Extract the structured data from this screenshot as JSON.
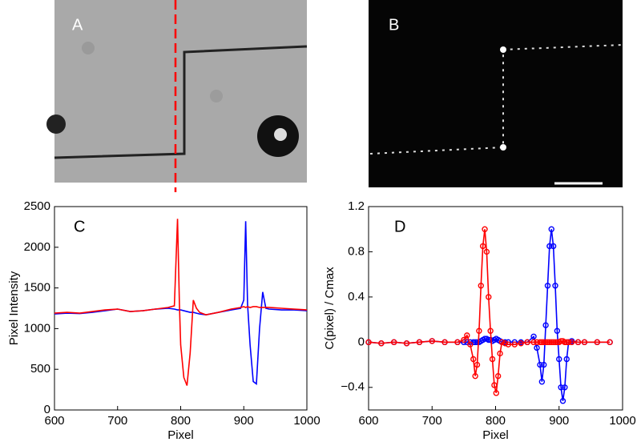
{
  "panels": [
    {
      "label": "A"
    },
    {
      "label": "B"
    }
  ],
  "chart_data": [
    {
      "type": "line",
      "annotation": "C",
      "xlabel": "Pixel",
      "ylabel": "Pixel Intensity",
      "xlim": [
        600,
        1000
      ],
      "xticks": [
        600,
        700,
        800,
        900,
        1000
      ],
      "ylim": [
        0,
        2500
      ],
      "yticks": [
        0,
        500,
        1000,
        1500,
        2000,
        2500
      ],
      "markers": false,
      "x": [
        600,
        620,
        640,
        660,
        680,
        700,
        720,
        740,
        760,
        780,
        790,
        795,
        798,
        800,
        805,
        810,
        815,
        820,
        825,
        830,
        840,
        860,
        880,
        895,
        900,
        903,
        906,
        910,
        915,
        920,
        925,
        930,
        935,
        940,
        960,
        980,
        1000
      ],
      "series": [
        {
          "color": "#0000ff",
          "values": [
            1180,
            1190,
            1185,
            1200,
            1220,
            1240,
            1210,
            1220,
            1240,
            1250,
            1240,
            1230,
            1230,
            1230,
            1220,
            1210,
            1200,
            1200,
            1190,
            1180,
            1170,
            1200,
            1230,
            1250,
            1350,
            2320,
            1300,
            800,
            350,
            320,
            1000,
            1450,
            1250,
            1240,
            1230,
            1230,
            1220
          ]
        },
        {
          "color": "#ff0000",
          "values": [
            1190,
            1200,
            1190,
            1210,
            1230,
            1240,
            1210,
            1220,
            1240,
            1260,
            1280,
            2350,
            1300,
            800,
            400,
            300,
            700,
            1350,
            1250,
            1200,
            1170,
            1200,
            1240,
            1260,
            1270,
            1260,
            1270,
            1260,
            1270,
            1270,
            1260,
            1260,
            1260,
            1260,
            1250,
            1240,
            1230
          ]
        }
      ]
    },
    {
      "type": "line",
      "annotation": "D",
      "xlabel": "Pixel",
      "ylabel": "C(pixel) / Cmax",
      "xlim": [
        600,
        1000
      ],
      "xticks": [
        600,
        700,
        800,
        900,
        1000
      ],
      "ylim": [
        -0.6,
        1.2
      ],
      "yticks": [
        {
          "value": -0.4,
          "label": "−0.4"
        },
        0,
        0.4,
        0.8,
        1.2
      ],
      "markers": true,
      "x": [
        600,
        620,
        640,
        660,
        680,
        700,
        720,
        740,
        750,
        755,
        760,
        765,
        768,
        771,
        774,
        777,
        780,
        783,
        786,
        789,
        792,
        795,
        798,
        801,
        804,
        807,
        810,
        815,
        820,
        830,
        840,
        850,
        860,
        865,
        870,
        873,
        876,
        879,
        882,
        885,
        888,
        891,
        894,
        897,
        900,
        903,
        906,
        909,
        912,
        915,
        920,
        930,
        940,
        960,
        980
      ],
      "series": [
        {
          "color": "#0000ff",
          "values": [
            0,
            -0.01,
            0,
            -0.01,
            0,
            0.01,
            0,
            0,
            0,
            0,
            0,
            0,
            0,
            0,
            0,
            0.01,
            0.02,
            0.03,
            0.03,
            0.02,
            0.02,
            0.01,
            0.02,
            0.03,
            0.02,
            0.01,
            0,
            0,
            0,
            0,
            0,
            0,
            0.05,
            -0.05,
            -0.2,
            -0.35,
            -0.2,
            0.15,
            0.5,
            0.85,
            1.0,
            0.85,
            0.5,
            0.1,
            -0.15,
            -0.4,
            -0.52,
            -0.4,
            -0.15,
            0,
            0.01,
            0,
            0,
            0,
            0
          ]
        },
        {
          "color": "#ff0000",
          "values": [
            0,
            -0.01,
            0,
            -0.01,
            0,
            0.01,
            0,
            0,
            0.02,
            0.06,
            -0.02,
            -0.15,
            -0.3,
            -0.2,
            0.1,
            0.5,
            0.85,
            1.0,
            0.8,
            0.4,
            0.1,
            -0.15,
            -0.38,
            -0.45,
            -0.3,
            -0.1,
            0,
            -0.01,
            -0.02,
            -0.02,
            -0.01,
            0,
            0,
            0,
            0,
            0,
            0,
            0,
            0,
            0,
            0,
            0,
            0,
            0,
            0,
            0.01,
            0.01,
            0,
            0,
            0,
            0,
            0,
            0,
            0,
            0
          ]
        }
      ]
    }
  ]
}
